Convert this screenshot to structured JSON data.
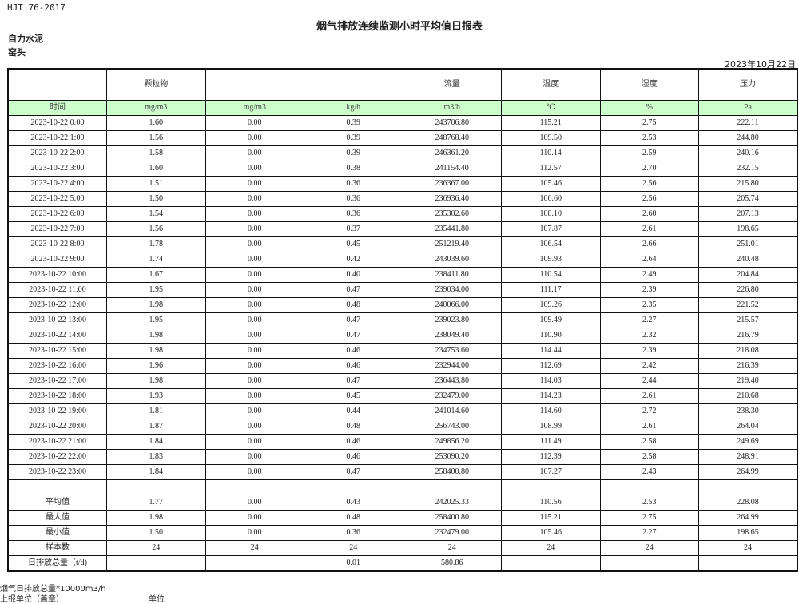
{
  "standard": "HJT  76-2017",
  "title": "烟气排放连续监测小时平均值日报表",
  "company": "自力水泥",
  "unit_name": "窑头",
  "date": "2023年10月22日",
  "header": [
    "",
    "颗粒物",
    "",
    "",
    "流量",
    "温度",
    "湿度",
    "压力"
  ],
  "units": [
    "时间",
    "mg/m3",
    "mg/m3",
    "kg/h",
    "m3/h",
    "℃",
    "%",
    "Pa"
  ],
  "rows": [
    [
      "2023-10-22 0:00",
      "1.60",
      "0.00",
      "0.39",
      "243706.80",
      "115.21",
      "2.75",
      "222.11"
    ],
    [
      "2023-10-22 1:00",
      "1.56",
      "0.00",
      "0.39",
      "248768.40",
      "109.50",
      "2.53",
      "244.80"
    ],
    [
      "2023-10-22 2:00",
      "1.58",
      "0.00",
      "0.39",
      "246361.20",
      "110.14",
      "2.59",
      "240.16"
    ],
    [
      "2023-10-22 3:00",
      "1.60",
      "0.00",
      "0.38",
      "241154.40",
      "112.57",
      "2.70",
      "232.15"
    ],
    [
      "2023-10-22 4:00",
      "1.51",
      "0.00",
      "0.36",
      "236367.00",
      "105.46",
      "2.56",
      "215.80"
    ],
    [
      "2023-10-22 5:00",
      "1.50",
      "0.00",
      "0.36",
      "236936.40",
      "106.60",
      "2.56",
      "205.74"
    ],
    [
      "2023-10-22 6:00",
      "1.54",
      "0.00",
      "0.36",
      "235302.60",
      "108.10",
      "2.60",
      "207.13"
    ],
    [
      "2023-10-22 7:00",
      "1.56",
      "0.00",
      "0.37",
      "235441.80",
      "107.87",
      "2.61",
      "198.65"
    ],
    [
      "2023-10-22 8:00",
      "1.78",
      "0.00",
      "0.45",
      "251219.40",
      "106.54",
      "2.66",
      "251.01"
    ],
    [
      "2023-10-22 9:00",
      "1.74",
      "0.00",
      "0.42",
      "243039.60",
      "109.93",
      "2.64",
      "240.48"
    ],
    [
      "2023-10-22 10:00",
      "1.67",
      "0.00",
      "0.40",
      "238411.80",
      "110.54",
      "2.49",
      "204.84"
    ],
    [
      "2023-10-22 11:00",
      "1.95",
      "0.00",
      "0.47",
      "239034.00",
      "111.17",
      "2.39",
      "226.80"
    ],
    [
      "2023-10-22 12:00",
      "1.98",
      "0.00",
      "0.48",
      "240066.00",
      "109.26",
      "2.35",
      "221.52"
    ],
    [
      "2023-10-22 13:00",
      "1.95",
      "0.00",
      "0.47",
      "239023.80",
      "109.49",
      "2.27",
      "215.57"
    ],
    [
      "2023-10-22 14:00",
      "1.98",
      "0.00",
      "0.47",
      "238049.40",
      "110.90",
      "2.32",
      "216.79"
    ],
    [
      "2023-10-22 15:00",
      "1.98",
      "0.00",
      "0.46",
      "234753.60",
      "114.44",
      "2.39",
      "218.08"
    ],
    [
      "2023-10-22 16:00",
      "1.96",
      "0.00",
      "0.46",
      "232944.00",
      "112.69",
      "2.42",
      "216.39"
    ],
    [
      "2023-10-22 17:00",
      "1.98",
      "0.00",
      "0.47",
      "236443.80",
      "114.03",
      "2.44",
      "219.40"
    ],
    [
      "2023-10-22 18:00",
      "1.93",
      "0.00",
      "0.45",
      "232479.00",
      "114.23",
      "2.61",
      "210.68"
    ],
    [
      "2023-10-22 19:00",
      "1.81",
      "0.00",
      "0.44",
      "241014.60",
      "114.60",
      "2.72",
      "238.30"
    ],
    [
      "2023-10-22 20:00",
      "1.87",
      "0.00",
      "0.48",
      "256743.00",
      "108.99",
      "2.61",
      "264.04"
    ],
    [
      "2023-10-22 21:00",
      "1.84",
      "0.00",
      "0.46",
      "249856.20",
      "111.49",
      "2.58",
      "249.69"
    ],
    [
      "2023-10-22 22:00",
      "1.83",
      "0.00",
      "0.46",
      "253090.20",
      "112.39",
      "2.58",
      "248.91"
    ],
    [
      "2023-10-22 23:00",
      "1.84",
      "0.00",
      "0.47",
      "258400.80",
      "107.27",
      "2.43",
      "264.99"
    ]
  ],
  "summary": [
    [
      "平均值",
      "1.77",
      "0.00",
      "0.43",
      "242025.33",
      "110.56",
      "2.53",
      "228.08"
    ],
    [
      "最大值",
      "1.98",
      "0.00",
      "0.48",
      "258400.80",
      "115.21",
      "2.75",
      "264.99"
    ],
    [
      "最小值",
      "1.50",
      "0.00",
      "0.36",
      "232479.00",
      "105.46",
      "2.27",
      "198.65"
    ],
    [
      "样本数",
      "24",
      "24",
      "24",
      "24",
      "24",
      "24",
      "24"
    ],
    [
      "日排放总量（t/d)",
      "",
      "",
      "0.01",
      "580.86",
      "",
      "",
      ""
    ]
  ],
  "footer": {
    "note": "烟气日排放总量*10000m3/h",
    "reporter_label": "上报单位（盖章）",
    "unit_label": "单位"
  },
  "colors": {
    "unit_row_bg": "#ccffcc"
  }
}
